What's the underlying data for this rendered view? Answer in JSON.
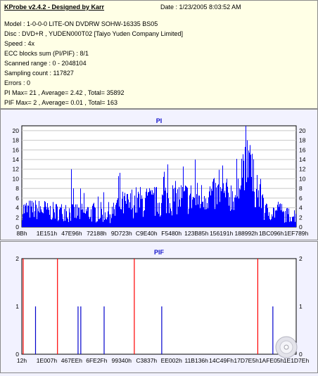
{
  "info": {
    "title": "KProbe v2.4.2 - Designed by Karr",
    "date": "Date : 1/23/2005 8:03:52 AM",
    "lines": [
      "Model : 1-0-0-0 LITE-ON DVDRW SOHW-16335 BS05",
      "Disc : DVD+R , YUDEN000T02 [Taiyo Yuden Company Limited]",
      "Speed : 4x",
      "ECC blocks sum (PI/PIF) : 8/1",
      "Scanned range : 0 - 2048104",
      "Sampling count : 117827",
      "Errors : 0",
      "PI Max= 21 , Average= 2.42 , Total= 35892",
      "PIF Max= 2 , Average= 0.01 , Total= 163"
    ]
  },
  "chart_data": [
    {
      "type": "bar",
      "title": "PI",
      "ylim": [
        0,
        21
      ],
      "yticks": [
        "0",
        "2",
        "4",
        "6",
        "8",
        "10",
        "12",
        "14",
        "16",
        "18",
        "20"
      ],
      "xticks": [
        "8Bh",
        "1E151h",
        "47E96h",
        "72188h",
        "9D723h",
        "C9E40h",
        "F5480h",
        "123B85h",
        "156191h",
        "188992h",
        "1BC096h",
        "1EF789h"
      ],
      "grid": true,
      "color": "#0000ff",
      "segments": [
        {
          "from": 0.0,
          "to": 0.09,
          "base": 3.6,
          "spread": 2.2
        },
        {
          "from": 0.09,
          "to": 0.16,
          "base": 3.2,
          "spread": 2.0
        },
        {
          "from": 0.16,
          "to": 0.34,
          "base": 3.0,
          "spread": 2.2
        },
        {
          "from": 0.34,
          "to": 0.4,
          "base": 4.6,
          "spread": 3.0
        },
        {
          "from": 0.4,
          "to": 0.52,
          "base": 5.2,
          "spread": 3.4
        },
        {
          "from": 0.52,
          "to": 0.66,
          "base": 6.0,
          "spread": 3.6
        },
        {
          "from": 0.66,
          "to": 0.79,
          "base": 6.6,
          "spread": 3.6
        },
        {
          "from": 0.79,
          "to": 0.84,
          "base": 12.5,
          "spread": 5.0
        },
        {
          "from": 0.84,
          "to": 0.88,
          "base": 6.5,
          "spread": 3.5
        },
        {
          "from": 0.88,
          "to": 0.95,
          "base": 3.2,
          "spread": 2.0
        },
        {
          "from": 0.95,
          "to": 1.0,
          "base": 2.5,
          "spread": 1.6
        }
      ],
      "peaks": [
        {
          "x": 0.18,
          "value": 12
        },
        {
          "x": 0.53,
          "value": 13
        },
        {
          "x": 0.63,
          "value": 14
        },
        {
          "x": 0.815,
          "value": 21
        },
        {
          "x": 0.82,
          "value": 18
        },
        {
          "x": 0.83,
          "value": 17
        }
      ]
    },
    {
      "type": "bar",
      "title": "PIF",
      "ylim": [
        0,
        2
      ],
      "yticks": [
        "0",
        "1",
        "2"
      ],
      "xticks": [
        "12h",
        "1E007h",
        "467EEh",
        "6FE2Fh",
        "99340h",
        "C3837h",
        "EE002h",
        "11B136h",
        "14C49Fh",
        "17D7E5h",
        "1AFE05h",
        "1E1D7Eh"
      ],
      "grid": false,
      "color": "#ff0000",
      "spikes": [
        {
          "x": 0.005,
          "value": 2
        },
        {
          "x": 0.05,
          "value": 1
        },
        {
          "x": 0.13,
          "value": 2
        },
        {
          "x": 0.205,
          "value": 1
        },
        {
          "x": 0.215,
          "value": 1
        },
        {
          "x": 0.3,
          "value": 1
        },
        {
          "x": 0.41,
          "value": 2
        },
        {
          "x": 0.51,
          "value": 1
        },
        {
          "x": 0.86,
          "value": 2
        },
        {
          "x": 0.915,
          "value": 1
        }
      ]
    }
  ]
}
